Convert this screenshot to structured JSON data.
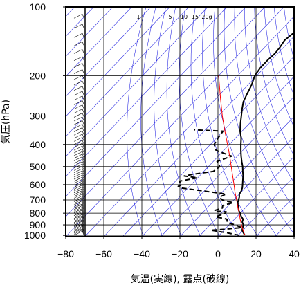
{
  "chart_data": {
    "type": "line",
    "title": "",
    "xlabel": "気温(実線), 露点(破線)",
    "ylabel": "気圧(hPa)",
    "xlim": [
      -80,
      40
    ],
    "ylim": [
      1013,
      100
    ],
    "y_scale": "log",
    "grid": true,
    "x_ticks": [
      -80,
      -60,
      -40,
      -20,
      0,
      20,
      40
    ],
    "x_tick_labels": [
      "−80",
      "−60",
      "−40",
      "−20",
      "0",
      "20",
      "40"
    ],
    "y_ticks": [
      100,
      200,
      300,
      400,
      500,
      600,
      700,
      800,
      900,
      1000
    ],
    "y_tick_labels": [
      "100",
      "200",
      "300",
      "400",
      "500",
      "600",
      "700",
      "800",
      "900",
      "1000"
    ],
    "mixing_ratio_labels": [
      "1",
      "5",
      "10",
      "15",
      "20g"
    ],
    "series": [
      {
        "kind": "temperature",
        "style": "solid",
        "color": "#000000",
        "points": [
          [
            1000,
            13.5
          ],
          [
            975,
            11.5
          ],
          [
            950,
            9.5
          ],
          [
            925,
            8.5
          ],
          [
            900,
            7.5
          ],
          [
            875,
            5.5
          ],
          [
            850,
            4.5
          ],
          [
            825,
            2
          ],
          [
            800,
            0
          ],
          [
            780,
            -2
          ],
          [
            760,
            -3.5
          ],
          [
            740,
            -5
          ],
          [
            720,
            -6.5
          ],
          [
            700,
            -7.5
          ],
          [
            680,
            -8.5
          ],
          [
            660,
            -10
          ],
          [
            640,
            -10.5
          ],
          [
            620,
            -11.5
          ],
          [
            600,
            -13
          ],
          [
            575,
            -15
          ],
          [
            550,
            -17
          ],
          [
            525,
            -19.5
          ],
          [
            500,
            -22
          ],
          [
            475,
            -25
          ],
          [
            450,
            -28
          ],
          [
            425,
            -31
          ],
          [
            400,
            -34
          ],
          [
            375,
            -37
          ],
          [
            350,
            -41
          ],
          [
            325,
            -44.5
          ],
          [
            300,
            -48
          ],
          [
            280,
            -51
          ],
          [
            260,
            -54
          ],
          [
            240,
            -56
          ],
          [
            220,
            -58
          ],
          [
            200,
            -61
          ],
          [
            185,
            -62
          ],
          [
            170,
            -62
          ],
          [
            160,
            -61.5
          ],
          [
            150,
            -62
          ],
          [
            140,
            -63
          ],
          [
            130,
            -62
          ],
          [
            120,
            -62.5
          ],
          [
            115,
            -61
          ],
          [
            110,
            -62
          ],
          [
            105,
            -63
          ],
          [
            100,
            -64
          ]
        ]
      },
      {
        "kind": "dewpoint",
        "style": "dashed",
        "color": "#000000",
        "points": [
          [
            1000,
            10.5
          ],
          [
            985,
            6
          ],
          [
            975,
            3
          ],
          [
            950,
            -7
          ],
          [
            940,
            0
          ],
          [
            925,
            8
          ],
          [
            900,
            3
          ],
          [
            880,
            -2
          ],
          [
            850,
            -4
          ],
          [
            830,
            -11
          ],
          [
            800,
            -8
          ],
          [
            790,
            -8
          ],
          [
            780,
            -15
          ],
          [
            760,
            -12
          ],
          [
            740,
            -13
          ],
          [
            720,
            -9
          ],
          [
            700,
            -16
          ],
          [
            680,
            -19
          ],
          [
            660,
            -17
          ],
          [
            640,
            -30
          ],
          [
            620,
            -44
          ],
          [
            610,
            -46
          ],
          [
            600,
            -45
          ],
          [
            580,
            -48
          ],
          [
            560,
            -40
          ],
          [
            550,
            -48
          ],
          [
            540,
            -44
          ],
          [
            525,
            -35
          ],
          [
            500,
            -34
          ],
          [
            475,
            -38
          ],
          [
            450,
            -33
          ],
          [
            425,
            -44
          ],
          [
            400,
            -48
          ],
          [
            380,
            -49
          ],
          [
            350,
            -50
          ],
          [
            345,
            -66
          ]
        ]
      },
      {
        "kind": "parcel",
        "style": "solid",
        "color": "#ff0000",
        "points": [
          [
            1000,
            13.5
          ],
          [
            950,
            10
          ],
          [
            900,
            6.5
          ],
          [
            850,
            3
          ],
          [
            800,
            -0.5
          ],
          [
            750,
            -4.5
          ],
          [
            700,
            -8.5
          ],
          [
            650,
            -13
          ],
          [
            600,
            -17.5
          ],
          [
            550,
            -22.5
          ],
          [
            500,
            -28
          ],
          [
            450,
            -34
          ],
          [
            400,
            -41
          ],
          [
            350,
            -49
          ],
          [
            300,
            -58
          ],
          [
            250,
            -68
          ],
          [
            200,
            -80
          ]
        ]
      }
    ]
  }
}
